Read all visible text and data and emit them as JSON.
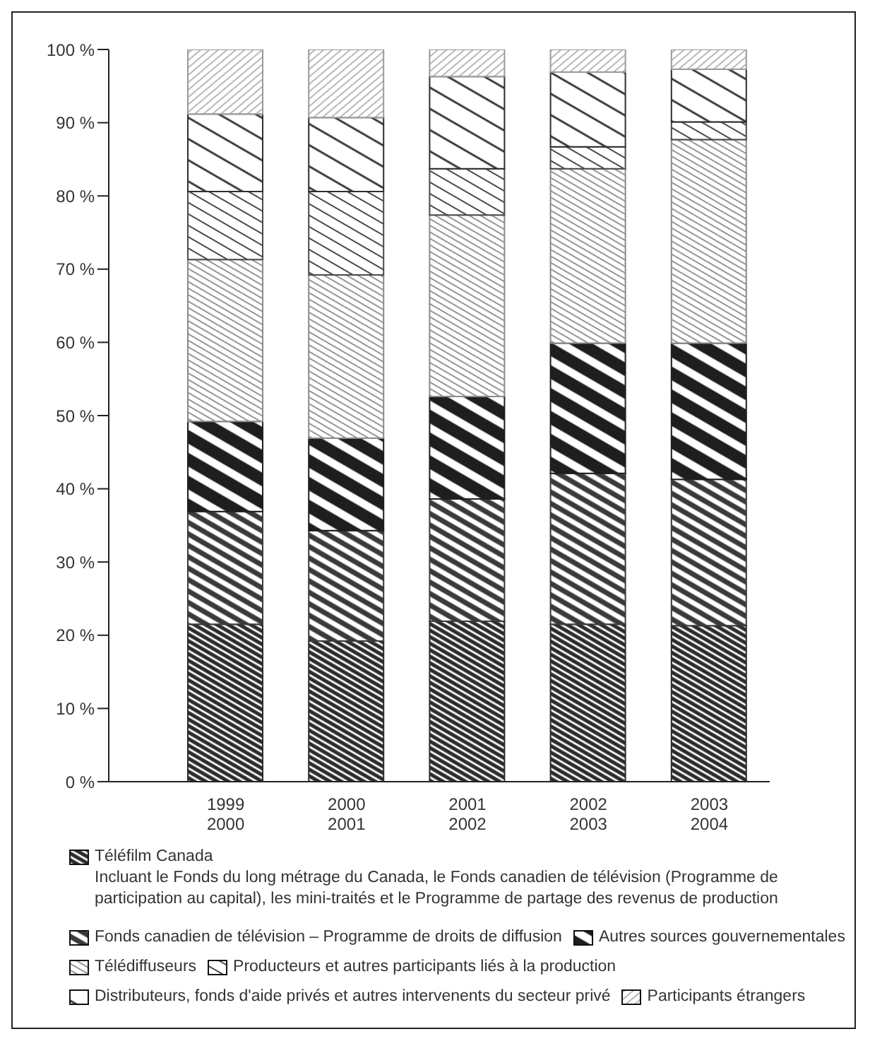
{
  "chart_data": {
    "type": "bar",
    "stacked": true,
    "categories": [
      "1999\n2000",
      "2000\n2001",
      "2001\n2002",
      "2002\n2003",
      "2003\n2004"
    ],
    "series": [
      {
        "name": "Téléfilm Canada",
        "color": "#2b2b2b",
        "values": [
          21.5,
          19.2,
          21.9,
          21.5,
          21.3
        ]
      },
      {
        "name": "Fonds canadien de télévision – Programme de droits de diffusion",
        "color": "#3a3a3a",
        "values": [
          15.4,
          15.1,
          16.7,
          20.6,
          20.0
        ]
      },
      {
        "name": "Autres sources gouvernementales",
        "color": "#1e1e1e",
        "values": [
          12.3,
          12.6,
          14.0,
          17.8,
          18.6
        ]
      },
      {
        "name": "Télédiffuseurs",
        "color": "#8a8a8a",
        "values": [
          22.1,
          22.3,
          24.8,
          23.8,
          27.8
        ]
      },
      {
        "name": "Producteurs et autres participants liés à la production",
        "color": "#4a4a4a",
        "values": [
          9.3,
          11.4,
          6.3,
          3.0,
          2.4
        ]
      },
      {
        "name": "Distributeurs, fonds d'aide privés et autres intervenents du secteur privé",
        "color": "#2f2f2f",
        "values": [
          10.6,
          10.1,
          12.6,
          10.2,
          7.2
        ]
      },
      {
        "name": "Participants étrangers",
        "color": "#9a9a9a",
        "values": [
          8.8,
          9.3,
          3.7,
          3.1,
          2.7
        ]
      }
    ],
    "annotations": [
      "Incluant le Fonds du long métrage du Canada, le Fonds canadien de télévision (Programme de participation au capital), les mini-traités et le Programme de partage des revenus de production"
    ],
    "ylim": [
      0,
      100
    ],
    "yticks": [
      {
        "value": 0,
        "label": "0 %"
      },
      {
        "value": 10,
        "label": "10 %"
      },
      {
        "value": 20,
        "label": "20 %"
      },
      {
        "value": 30,
        "label": "30 %"
      },
      {
        "value": 40,
        "label": "40 %"
      },
      {
        "value": 50,
        "label": "50 %"
      },
      {
        "value": 60,
        "label": "60 %"
      },
      {
        "value": 70,
        "label": "70 %"
      },
      {
        "value": 80,
        "label": "80 %"
      },
      {
        "value": 90,
        "label": "90 %"
      },
      {
        "value": 100,
        "label": "100 %"
      }
    ],
    "grid": false,
    "legend": "bottom"
  }
}
